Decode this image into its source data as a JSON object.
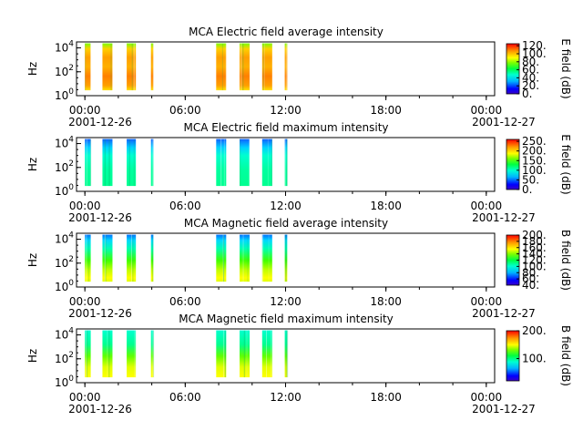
{
  "chart_data": [
    {
      "type": "heatmap",
      "title": "MCA  Electric field average intensity",
      "ylabel": "Hz",
      "colorbar_label": "E field (dB)",
      "colorbar_ticks": [
        "0.",
        "20.",
        "40.",
        "60.",
        "80.",
        "100.",
        "120."
      ],
      "colorbar_range": [
        0,
        125
      ],
      "y_ticks": [
        {
          "base": "10",
          "exp": "0"
        },
        {
          "base": "10",
          "exp": "2"
        },
        {
          "base": "10",
          "exp": "4"
        }
      ],
      "colormap": "rainbow",
      "scale": "log",
      "palette": "avg"
    },
    {
      "type": "heatmap",
      "title": "MCA  Electric field maximum intensity",
      "ylabel": "Hz",
      "colorbar_label": "E field (dB)",
      "colorbar_ticks": [
        "0.",
        "50.",
        "100.",
        "150.",
        "200.",
        "250."
      ],
      "colorbar_range": [
        0,
        260
      ],
      "y_ticks": [
        {
          "base": "10",
          "exp": "0"
        },
        {
          "base": "10",
          "exp": "2"
        },
        {
          "base": "10",
          "exp": "4"
        }
      ],
      "colormap": "rainbow",
      "scale": "log",
      "palette": "emax"
    },
    {
      "type": "heatmap",
      "title": "MCA  Magnetic field average intensity",
      "ylabel": "Hz",
      "colorbar_label": "B field (dB)",
      "colorbar_ticks": [
        "40.",
        "60.",
        "80.",
        "100.",
        "120.",
        "140.",
        "160.",
        "180.",
        "200."
      ],
      "colorbar_range": [
        40,
        200
      ],
      "y_ticks": [
        {
          "base": "10",
          "exp": "0"
        },
        {
          "base": "10",
          "exp": "2"
        },
        {
          "base": "10",
          "exp": "4"
        }
      ],
      "colormap": "rainbow",
      "scale": "log",
      "palette": "bavg"
    },
    {
      "type": "heatmap",
      "title": "MCA  Magnetic field maximum intensity",
      "ylabel": "Hz",
      "colorbar_label": "B field (dB)",
      "colorbar_ticks": [
        "100.",
        "200."
      ],
      "colorbar_range": [
        20,
        200
      ],
      "y_ticks": [
        {
          "base": "10",
          "exp": "0"
        },
        {
          "base": "10",
          "exp": "2"
        },
        {
          "base": "10",
          "exp": "4"
        }
      ],
      "colormap": "rainbow",
      "scale": "log",
      "palette": "bmax"
    }
  ],
  "x_axis": {
    "tick_labels": [
      "00:00",
      "06:00",
      "12:00",
      "18:00",
      "00:00"
    ],
    "start_date": "2001-12-26",
    "end_date": "2001-12-27",
    "range_hours": [
      -0.5,
      24.5
    ]
  },
  "observation_intervals_hours": [
    [
      0.0,
      0.35
    ],
    [
      1.05,
      1.65
    ],
    [
      2.5,
      3.05
    ],
    [
      3.95,
      4.1
    ],
    [
      7.85,
      8.45
    ],
    [
      9.25,
      9.85
    ],
    [
      10.6,
      11.2
    ],
    [
      11.95,
      12.1
    ]
  ]
}
